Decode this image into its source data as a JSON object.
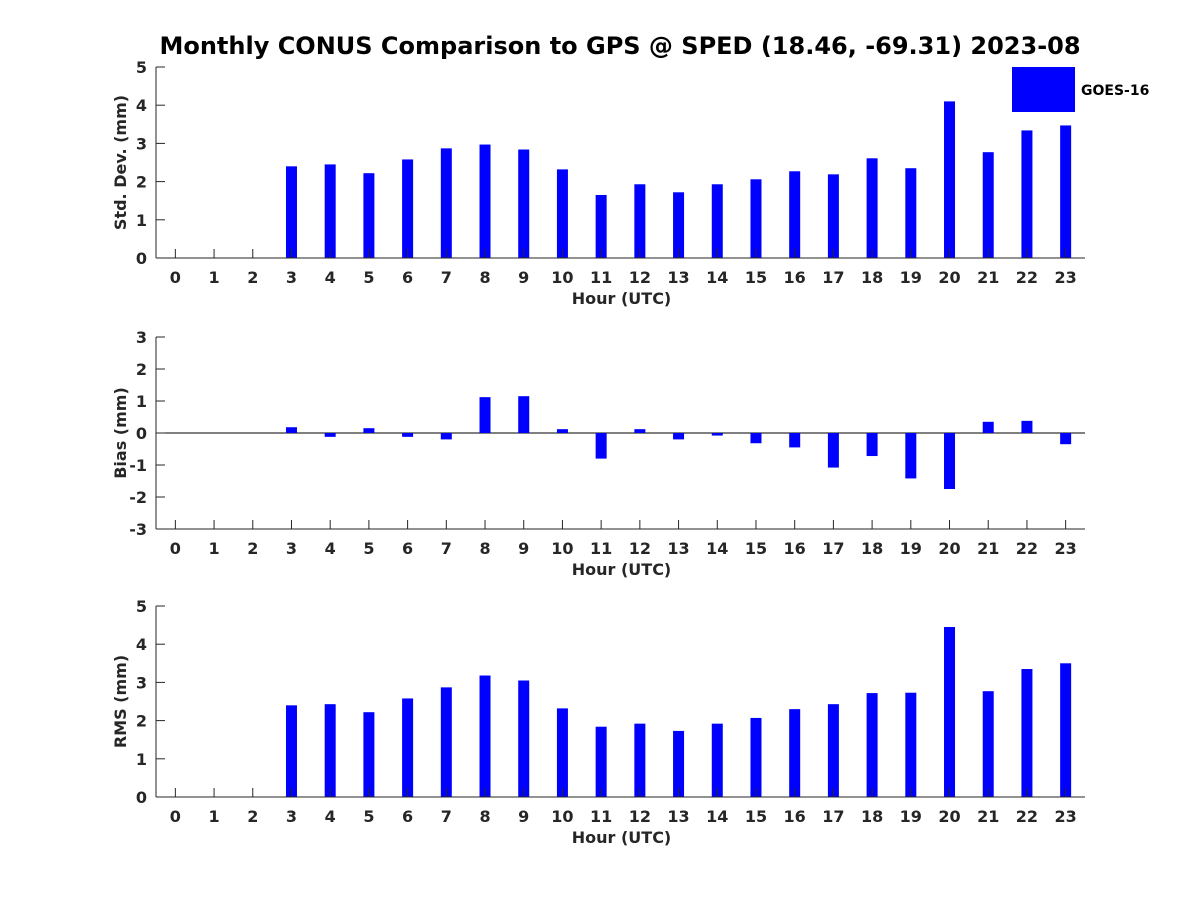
{
  "chart_data": [
    {
      "type": "bar",
      "title": "Monthly CONUS Comparison to GPS @ SPED (18.46, -69.31) 2023-08",
      "xlabel": "Hour (UTC)",
      "ylabel": "Std. Dev. (mm)",
      "ylim": [
        0,
        5
      ],
      "yticks": [
        "0",
        "1",
        "2",
        "3",
        "4",
        "5"
      ],
      "categories": [
        "0",
        "1",
        "2",
        "3",
        "4",
        "5",
        "6",
        "7",
        "8",
        "9",
        "10",
        "11",
        "12",
        "13",
        "14",
        "15",
        "16",
        "17",
        "18",
        "19",
        "20",
        "21",
        "22",
        "23"
      ],
      "series": [
        {
          "name": "GOES-16",
          "color": "#0000ff",
          "values": [
            null,
            null,
            null,
            2.4,
            2.45,
            2.22,
            2.58,
            2.87,
            2.97,
            2.84,
            2.32,
            1.65,
            1.93,
            1.72,
            1.93,
            2.06,
            2.27,
            2.19,
            2.61,
            2.35,
            4.1,
            2.77,
            3.34,
            3.47
          ]
        }
      ],
      "legend": {
        "position": "top-right",
        "label": "GOES-16"
      }
    },
    {
      "type": "bar",
      "xlabel": "Hour (UTC)",
      "ylabel": "Bias (mm)",
      "ylim": [
        -3,
        3
      ],
      "yticks": [
        "-3",
        "-2",
        "-1",
        "0",
        "1",
        "2",
        "3"
      ],
      "categories": [
        "0",
        "1",
        "2",
        "3",
        "4",
        "5",
        "6",
        "7",
        "8",
        "9",
        "10",
        "11",
        "12",
        "13",
        "14",
        "15",
        "16",
        "17",
        "18",
        "19",
        "20",
        "21",
        "22",
        "23"
      ],
      "series": [
        {
          "name": "GOES-16",
          "color": "#0000ff",
          "values": [
            null,
            null,
            null,
            0.18,
            -0.12,
            0.15,
            -0.12,
            -0.2,
            1.12,
            1.15,
            0.12,
            -0.8,
            0.12,
            -0.2,
            -0.08,
            -0.32,
            -0.45,
            -1.08,
            -0.72,
            -1.42,
            -1.75,
            0.35,
            0.38,
            -0.35
          ]
        }
      ]
    },
    {
      "type": "bar",
      "xlabel": "Hour (UTC)",
      "ylabel": "RMS (mm)",
      "ylim": [
        0,
        5
      ],
      "yticks": [
        "0",
        "1",
        "2",
        "3",
        "4",
        "5"
      ],
      "categories": [
        "0",
        "1",
        "2",
        "3",
        "4",
        "5",
        "6",
        "7",
        "8",
        "9",
        "10",
        "11",
        "12",
        "13",
        "14",
        "15",
        "16",
        "17",
        "18",
        "19",
        "20",
        "21",
        "22",
        "23"
      ],
      "series": [
        {
          "name": "GOES-16",
          "color": "#0000ff",
          "values": [
            null,
            null,
            null,
            2.4,
            2.43,
            2.22,
            2.58,
            2.87,
            3.18,
            3.05,
            2.32,
            1.84,
            1.92,
            1.73,
            1.92,
            2.07,
            2.3,
            2.43,
            2.72,
            2.73,
            4.45,
            2.77,
            3.35,
            3.5
          ]
        }
      ]
    }
  ]
}
